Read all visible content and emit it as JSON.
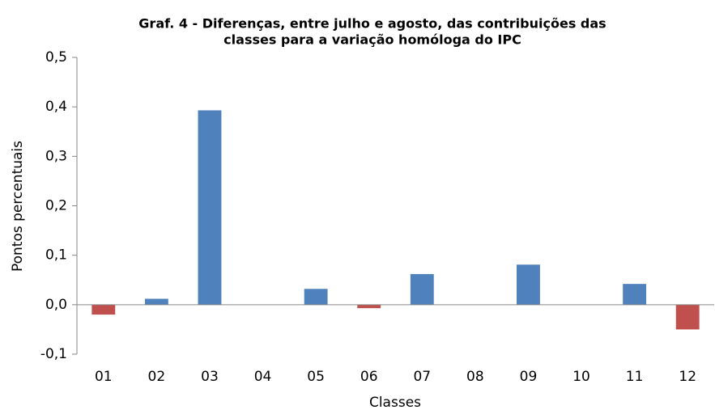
{
  "chart_data": {
    "type": "bar",
    "title": [
      "Graf. 4 - Diferenças, entre julho e agosto, das contribuições das",
      "classes para a variação homóloga do IPC"
    ],
    "x_label": "Classes",
    "y_label": "Pontos percentuais",
    "categories": [
      "01",
      "02",
      "03",
      "04",
      "05",
      "06",
      "07",
      "08",
      "09",
      "10",
      "11",
      "12"
    ],
    "values": [
      -0.02,
      0.012,
      0.393,
      0,
      0.032,
      -0.007,
      0.062,
      0,
      0.081,
      0,
      0.042,
      -0.05
    ],
    "color": "#4f81bd",
    "negative_color": "#c0504d",
    "ylim": [
      -0.1,
      0.5
    ],
    "yticks": [
      {
        "value": -0.1,
        "label": "-0,1"
      },
      {
        "value": 0,
        "label": "0,0"
      },
      {
        "value": 0.1,
        "label": "0,1"
      },
      {
        "value": 0.2,
        "label": "0,2"
      },
      {
        "value": 0.3,
        "label": "0,3"
      },
      {
        "value": 0.4,
        "label": "0,4"
      },
      {
        "value": 0.5,
        "label": "0,5"
      }
    ],
    "grid": false
  }
}
